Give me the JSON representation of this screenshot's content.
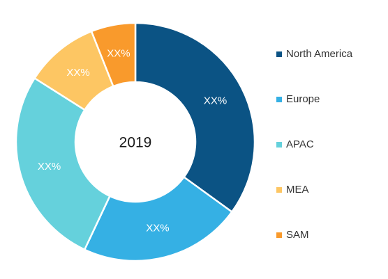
{
  "chart_data": {
    "type": "pie",
    "variant": "donut",
    "center_label": "2019",
    "legend_placement": "right",
    "slices": [
      {
        "name": "North America",
        "value": 35,
        "label": "XX%",
        "color": "#0b5384"
      },
      {
        "name": "Europe",
        "value": 22,
        "label": "XX%",
        "color": "#35b0e4"
      },
      {
        "name": "APAC",
        "value": 27,
        "label": "XX%",
        "color": "#65d1dc"
      },
      {
        "name": "MEA",
        "value": 10,
        "label": "XX%",
        "color": "#fdc663"
      },
      {
        "name": "SAM",
        "value": 6,
        "label": "XX%",
        "color": "#f99a2c"
      }
    ]
  }
}
